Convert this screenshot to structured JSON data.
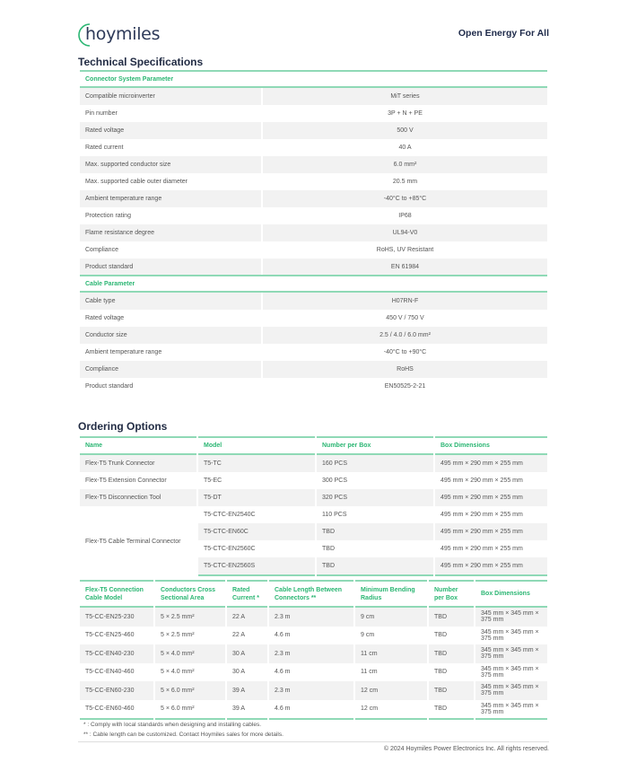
{
  "header": {
    "logo": "hoymiles",
    "slogan": "Open Energy For All"
  },
  "tech": {
    "title": "Technical Specifications",
    "connector": {
      "heading": "Connector System Parameter",
      "rows": [
        [
          "Compatible microinverter",
          "MiT series"
        ],
        [
          "Pin number",
          "3P + N + PE"
        ],
        [
          "Rated voltage",
          "500 V"
        ],
        [
          "Rated current",
          "40 A"
        ],
        [
          "Max. supported conductor size",
          "6.0 mm²"
        ],
        [
          "Max. supported cable outer diameter",
          "20.5 mm"
        ],
        [
          "Ambient temperature range",
          "-40°C to +85°C"
        ],
        [
          "Protection rating",
          "IP68"
        ],
        [
          "Flame resistance degree",
          "UL94-V0"
        ],
        [
          "Compliance",
          "RoHS, UV Resistant"
        ],
        [
          "Product standard",
          "EN 61984"
        ]
      ]
    },
    "cable": {
      "heading": "Cable Parameter",
      "rows": [
        [
          "Cable type",
          "H07RN-F"
        ],
        [
          "Rated voltage",
          "450 V / 750 V"
        ],
        [
          "Conductor size",
          "2.5 / 4.0 / 6.0 mm²"
        ],
        [
          "Ambient temperature range",
          "-40°C to +90°C"
        ],
        [
          "Compliance",
          "RoHS"
        ],
        [
          "Product standard",
          "EN50525-2-21"
        ]
      ]
    }
  },
  "ordering": {
    "title": "Ordering Options",
    "headers": [
      "Name",
      "Model",
      "Number per Box",
      "Box Dimensions"
    ],
    "rows": [
      [
        "Flex-T5 Trunk Connector",
        "T5-TC",
        "160 PCS",
        "495 mm × 290 mm × 255 mm"
      ],
      [
        "Flex-T5 Extension Connector",
        "T5-EC",
        "300 PCS",
        "495 mm × 290 mm × 255 mm"
      ],
      [
        "Flex-T5 Disconnection Tool",
        "T5-DT",
        "320 PCS",
        "495 mm × 290 mm × 255 mm"
      ]
    ],
    "terminal": {
      "name": "Flex-T5 Cable Terminal Connector",
      "rows": [
        [
          "T5-CTC-EN2540C",
          "110 PCS",
          "495 mm × 290 mm × 255 mm"
        ],
        [
          "T5-CTC-EN60C",
          "TBD",
          "495 mm × 290 mm × 255 mm"
        ],
        [
          "T5-CTC-EN2560C",
          "TBD",
          "495 mm × 290 mm × 255 mm"
        ],
        [
          "T5-CTC-EN2560S",
          "TBD",
          "495 mm × 290 mm × 255 mm"
        ]
      ]
    }
  },
  "cables": {
    "headers": [
      "Flex-T5 Connection Cable Model",
      "Conductors Cross Sectional Area",
      "Rated Current *",
      "Cable Length Between Connectors **",
      "Minimum Bending Radius",
      "Number per Box",
      "Box Dimensions"
    ],
    "rows": [
      [
        "T5-CC-EN25-230",
        "5 × 2.5 mm²",
        "22 A",
        "2.3 m",
        "9 cm",
        "TBD",
        "345 mm × 345 mm × 375 mm"
      ],
      [
        "T5-CC-EN25-460",
        "5 × 2.5 mm²",
        "22 A",
        "4.6 m",
        "9 cm",
        "TBD",
        "345 mm × 345 mm × 375 mm"
      ],
      [
        "T5-CC-EN40-230",
        "5 × 4.0 mm²",
        "30 A",
        "2.3 m",
        "11 cm",
        "TBD",
        "345 mm × 345 mm × 375 mm"
      ],
      [
        "T5-CC-EN40-460",
        "5 × 4.0 mm²",
        "30 A",
        "4.6 m",
        "11 cm",
        "TBD",
        "345 mm × 345 mm × 375 mm"
      ],
      [
        "T5-CC-EN60-230",
        "5 × 6.0 mm²",
        "39 A",
        "2.3 m",
        "12 cm",
        "TBD",
        "345 mm × 345 mm × 375 mm"
      ],
      [
        "T5-CC-EN60-460",
        "5 × 6.0 mm²",
        "39 A",
        "4.6 m",
        "12 cm",
        "TBD",
        "345 mm × 345 mm × 375 mm"
      ]
    ]
  },
  "notes": [
    "*    : Comply with local standards when designing and installing cables.",
    "** : Cable length can be customized. Contact Hoymiles sales for more details."
  ],
  "footer": {
    "copyright": "© 2024 Hoymiles Power Electronics Inc. All rights reserved."
  },
  "colors": {
    "accent": "#2bb673",
    "rule": "#8fd9b6",
    "stripe": "#f2f2f2"
  }
}
